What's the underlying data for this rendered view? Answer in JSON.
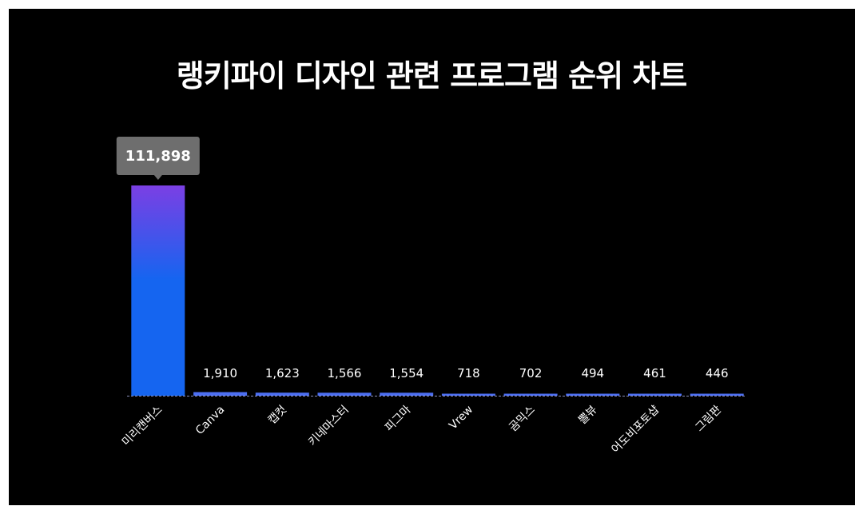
{
  "chart_data": {
    "type": "bar",
    "title": "랭키파이 디자인 관련 프로그램 순위 차트",
    "categories": [
      "미리캔버스",
      "Canva",
      "캡컷",
      "키네마스터",
      "피그마",
      "Vrew",
      "곰믹스",
      "뽈뷰",
      "어도비포토샵",
      "그림판"
    ],
    "values": [
      111898,
      1910,
      1623,
      1566,
      1554,
      718,
      702,
      494,
      461,
      446
    ],
    "value_labels": [
      "111,898",
      "1,910",
      "1,623",
      "1,566",
      "1,554",
      "718",
      "702",
      "494",
      "461",
      "446"
    ],
    "highlight_index": 0,
    "highlight_label": "111,898",
    "ylim": [
      0,
      111898
    ],
    "grid": false,
    "legend": "none",
    "colors": {
      "background": "#000000",
      "frame": "#ffffff",
      "bar_top": "#7b3fe4",
      "bar_bottom": "#1565f0",
      "small_bar": "#4d6ff2",
      "baseline": "#8a8fb8",
      "tooltip_bg": "#6e6e6e",
      "text": "#ffffff"
    }
  }
}
